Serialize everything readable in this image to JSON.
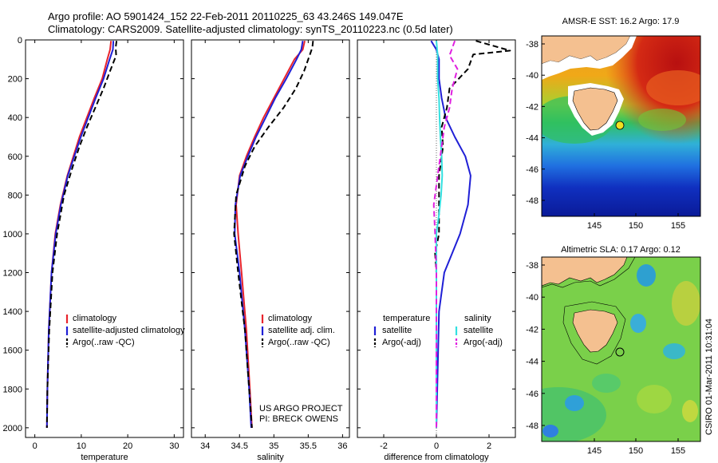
{
  "header": {
    "line1": "Argo profile: AO 5901424_152 22-Feb-2011 20110225_63 43.246S 149.047E",
    "line2": "Climatology: CARS2009. Satellite-adjusted climatology: synTS_20110223.nc (0.5d later)"
  },
  "colors": {
    "climatology": "#e8242c",
    "satellite": "#1f1fd6",
    "argo": "#000000",
    "salinity_satellite": "#33e0e0",
    "salinity_argo": "#e020e0"
  },
  "chart_data": [
    {
      "id": "temperature",
      "type": "line",
      "xlabel": "temperature",
      "ylabel": "",
      "xlim": [
        -2,
        32
      ],
      "ylim": [
        2050,
        0
      ],
      "xticks": [
        0,
        10,
        20,
        30
      ],
      "yticks": [
        0,
        200,
        400,
        600,
        800,
        1000,
        1200,
        1400,
        1600,
        1800,
        2000
      ],
      "legend": {
        "placement": "lower-center",
        "entries": [
          "climatology",
          "satellite-adjusted climatology",
          "Argo(..raw -QC)"
        ]
      },
      "series": [
        {
          "name": "climatology",
          "style": "solid",
          "color": "climatology",
          "x": [
            16.4,
            16.2,
            15.6,
            14.5,
            12.8,
            11.2,
            9.6,
            8.3,
            7.0,
            5.5,
            4.4,
            3.6,
            3.0,
            2.7,
            2.6
          ],
          "y": [
            5,
            50,
            100,
            200,
            300,
            400,
            500,
            600,
            700,
            850,
            1000,
            1200,
            1500,
            1800,
            2000
          ]
        },
        {
          "name": "satellite-adjusted climatology",
          "style": "solid",
          "color": "satellite",
          "x": [
            16.9,
            16.8,
            16.1,
            14.8,
            13.1,
            11.5,
            9.9,
            8.5,
            7.1,
            5.6,
            4.5,
            3.6,
            3.0,
            2.7,
            2.6
          ],
          "y": [
            5,
            50,
            100,
            200,
            300,
            400,
            500,
            600,
            700,
            850,
            1000,
            1200,
            1500,
            1800,
            2000
          ]
        },
        {
          "name": "Argo(..raw -QC)",
          "style": "dashed",
          "color": "argo",
          "x": [
            17.6,
            17.4,
            17.5,
            16.2,
            14.8,
            13.0,
            11.2,
            9.6,
            8.2,
            6.3,
            4.8,
            3.8,
            3.1,
            2.7,
            2.6
          ],
          "y": [
            5,
            40,
            80,
            160,
            250,
            350,
            450,
            550,
            650,
            800,
            1000,
            1200,
            1500,
            1800,
            2000
          ]
        }
      ]
    },
    {
      "id": "salinity",
      "type": "line",
      "xlabel": "salinity",
      "ylabel": "",
      "xlim": [
        33.8,
        36.1
      ],
      "ylim": [
        2050,
        0
      ],
      "xticks": [
        34,
        34.5,
        35,
        35.5,
        36
      ],
      "xticklabels": [
        "34",
        "34.5",
        "35",
        "35.5",
        "36"
      ],
      "legend": {
        "placement": "lower-center",
        "entries": [
          "climatology",
          "satellite adj. clim.",
          "Argo(..raw -QC)"
        ]
      },
      "annotation": [
        "US ARGO PROJECT",
        "PI: BRECK OWENS"
      ],
      "series": [
        {
          "name": "climatology",
          "style": "solid",
          "color": "climatology",
          "x": [
            35.45,
            35.42,
            35.3,
            35.15,
            35.0,
            34.85,
            34.72,
            34.6,
            34.5,
            34.45,
            34.48,
            34.53,
            34.6,
            34.65,
            34.68
          ],
          "y": [
            5,
            50,
            100,
            200,
            300,
            400,
            500,
            600,
            700,
            850,
            1000,
            1200,
            1500,
            1800,
            2000
          ]
        },
        {
          "name": "satellite adj. clim.",
          "style": "solid",
          "color": "satellite",
          "x": [
            35.42,
            35.4,
            35.33,
            35.18,
            35.02,
            34.88,
            34.74,
            34.62,
            34.51,
            34.44,
            34.43,
            34.5,
            34.58,
            34.64,
            34.67
          ],
          "y": [
            5,
            50,
            100,
            200,
            300,
            400,
            500,
            600,
            700,
            850,
            1000,
            1200,
            1500,
            1800,
            2000
          ]
        },
        {
          "name": "Argo(..raw -QC)",
          "style": "dashed",
          "color": "argo",
          "x": [
            35.57,
            35.56,
            35.52,
            35.44,
            35.32,
            35.14,
            34.92,
            34.72,
            34.58,
            34.45,
            34.42,
            34.48,
            34.58,
            34.64,
            34.68
          ],
          "y": [
            5,
            40,
            80,
            160,
            250,
            350,
            450,
            550,
            650,
            800,
            1000,
            1200,
            1500,
            1800,
            2000
          ]
        }
      ]
    },
    {
      "id": "difference",
      "type": "line",
      "xlabel": "difference from climatology",
      "ylabel": "",
      "xlim": [
        -3,
        3
      ],
      "ylim": [
        2050,
        0
      ],
      "xticks": [
        -2,
        0,
        2
      ],
      "legend": {
        "placement": "lower-center",
        "entries": [
          "temperature",
          "satellite",
          "Argo(-adj)",
          "salinity",
          "satellite",
          "Argo(-adj)"
        ]
      },
      "series": [
        {
          "name": "temperature satellite",
          "style": "solid",
          "color": "satellite",
          "x": [
            -0.2,
            0.0,
            0.1,
            0.1,
            0.2,
            0.35,
            0.7,
            1.1,
            1.3,
            1.2,
            0.9,
            0.6,
            0.3,
            0.1,
            0.0
          ],
          "y": [
            5,
            50,
            100,
            200,
            300,
            400,
            500,
            600,
            700,
            850,
            1000,
            1100,
            1200,
            1400,
            2000
          ]
        },
        {
          "name": "temperature Argo(-adj)",
          "style": "dashed",
          "color": "argo",
          "x": [
            1.5,
            2.8,
            1.4,
            1.2,
            0.5,
            0.4,
            0.2,
            0.25,
            0.1,
            0.1,
            0.1,
            -0.05,
            0.0,
            0.0,
            0.0
          ],
          "y": [
            5,
            55,
            75,
            150,
            250,
            350,
            450,
            550,
            700,
            850,
            1000,
            1100,
            1200,
            1500,
            2000
          ]
        },
        {
          "name": "salinity satellite",
          "style": "solid",
          "color": "salinity_satellite",
          "x": [
            0.0,
            0.05,
            0.05,
            0.1,
            0.12,
            0.15,
            0.2,
            0.22,
            0.18,
            0.1,
            0.0,
            0.0,
            0.0,
            0.0
          ],
          "y": [
            5,
            80,
            200,
            300,
            400,
            500,
            600,
            700,
            800,
            900,
            1000,
            1200,
            1500,
            2000
          ]
        },
        {
          "name": "salinity Argo(-adj)",
          "style": "dashed",
          "color": "salinity_argo",
          "x": [
            0.7,
            0.5,
            0.8,
            0.6,
            0.5,
            0.3,
            0.2,
            0.1,
            0.0,
            -0.1,
            -0.05,
            0.0,
            0.0,
            0.0
          ],
          "y": [
            5,
            80,
            150,
            250,
            350,
            450,
            550,
            650,
            750,
            850,
            1000,
            1200,
            1500,
            2000
          ]
        }
      ]
    }
  ],
  "maps": [
    {
      "id": "sst",
      "title": "AMSR-E SST: 16.2 Argo: 17.9",
      "xticks": [
        "145",
        "150",
        "155"
      ],
      "yticks": [
        "-38",
        "-40",
        "-42",
        "-44",
        "-46",
        "-48"
      ]
    },
    {
      "id": "sla",
      "title": "Altimetric SLA: 0.17 Argo: 0.12",
      "xticks": [
        "145",
        "150",
        "155"
      ],
      "yticks": [
        "-38",
        "-40",
        "-42",
        "-44",
        "-46",
        "-48"
      ]
    }
  ],
  "footer": {
    "timestamp": "CSIRO 01-Mar-2011 10:31:04"
  }
}
